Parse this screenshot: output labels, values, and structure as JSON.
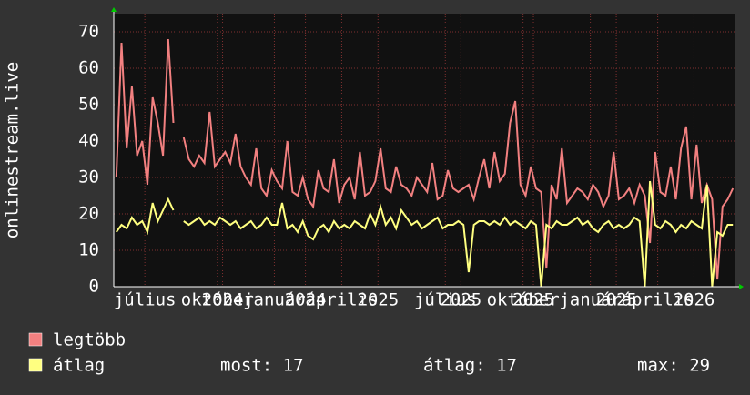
{
  "chart_data": {
    "type": "line",
    "y_label": "onlinestream.live",
    "xlim": [
      0,
      120
    ],
    "ylim": [
      0,
      75
    ],
    "yticks": [
      0,
      10,
      20,
      30,
      40,
      50,
      60,
      70
    ],
    "xticks": [
      {
        "value": 6,
        "label": "július"
      },
      {
        "value": 20,
        "label": "október"
      },
      {
        "value": 21,
        "label": "2024"
      },
      {
        "value": 31,
        "label": "január"
      },
      {
        "value": 37,
        "label": "2024"
      },
      {
        "value": 44,
        "label": "április"
      },
      {
        "value": 51,
        "label": "2025"
      },
      {
        "value": 64,
        "label": "július"
      },
      {
        "value": 67,
        "label": "2025"
      },
      {
        "value": 79,
        "label": "október"
      },
      {
        "value": 81,
        "label": "2025"
      },
      {
        "value": 92,
        "label": "január"
      },
      {
        "value": 97,
        "label": "2025"
      },
      {
        "value": 105,
        "label": "április"
      },
      {
        "value": 112,
        "label": "2026"
      }
    ],
    "grid": true,
    "series": [
      {
        "name": "legtöbb",
        "color": "#f28080",
        "values": [
          30,
          67,
          38,
          55,
          36,
          40,
          28,
          52,
          45,
          36,
          68,
          45,
          null,
          41,
          35,
          33,
          36,
          34,
          48,
          33,
          35,
          37,
          34,
          42,
          33,
          30,
          28,
          38,
          27,
          25,
          32,
          29,
          27,
          40,
          26,
          25,
          30,
          24,
          22,
          32,
          27,
          26,
          35,
          23,
          28,
          30,
          24,
          37,
          25,
          26,
          29,
          38,
          27,
          26,
          33,
          28,
          27,
          25,
          30,
          28,
          26,
          34,
          24,
          25,
          32,
          27,
          26,
          27,
          28,
          24,
          30,
          35,
          27,
          37,
          29,
          31,
          45,
          51,
          28,
          25,
          33,
          27,
          26,
          5,
          28,
          24,
          38,
          23,
          25,
          27,
          26,
          24,
          28,
          26,
          22,
          25,
          37,
          24,
          25,
          27,
          23,
          28,
          25,
          12,
          37,
          26,
          25,
          33,
          24,
          38,
          44,
          24,
          39,
          23,
          28,
          24,
          2,
          22,
          24,
          27
        ]
      },
      {
        "name": "átlag",
        "color": "#ffff80",
        "values": [
          15,
          17,
          16,
          19,
          17,
          18,
          15,
          23,
          18,
          21,
          24,
          21,
          null,
          18,
          17,
          18,
          19,
          17,
          18,
          17,
          19,
          18,
          17,
          18,
          16,
          17,
          18,
          16,
          17,
          19,
          17,
          17,
          23,
          16,
          17,
          15,
          18,
          14,
          13,
          16,
          17,
          15,
          18,
          16,
          17,
          16,
          18,
          17,
          16,
          20,
          17,
          22,
          17,
          19,
          16,
          21,
          19,
          17,
          18,
          16,
          17,
          18,
          19,
          16,
          17,
          17,
          18,
          17,
          4,
          17,
          18,
          18,
          17,
          18,
          17,
          19,
          17,
          18,
          17,
          16,
          18,
          17,
          0,
          17,
          16,
          18,
          17,
          17,
          18,
          19,
          17,
          18,
          16,
          15,
          17,
          18,
          16,
          17,
          16,
          17,
          19,
          18,
          0,
          29,
          17,
          16,
          18,
          17,
          15,
          17,
          16,
          18,
          17,
          16,
          28,
          0,
          15,
          14,
          17,
          17
        ]
      }
    ],
    "stats": [
      "most: 17",
      "átlag: 17",
      "max: 29"
    ]
  }
}
